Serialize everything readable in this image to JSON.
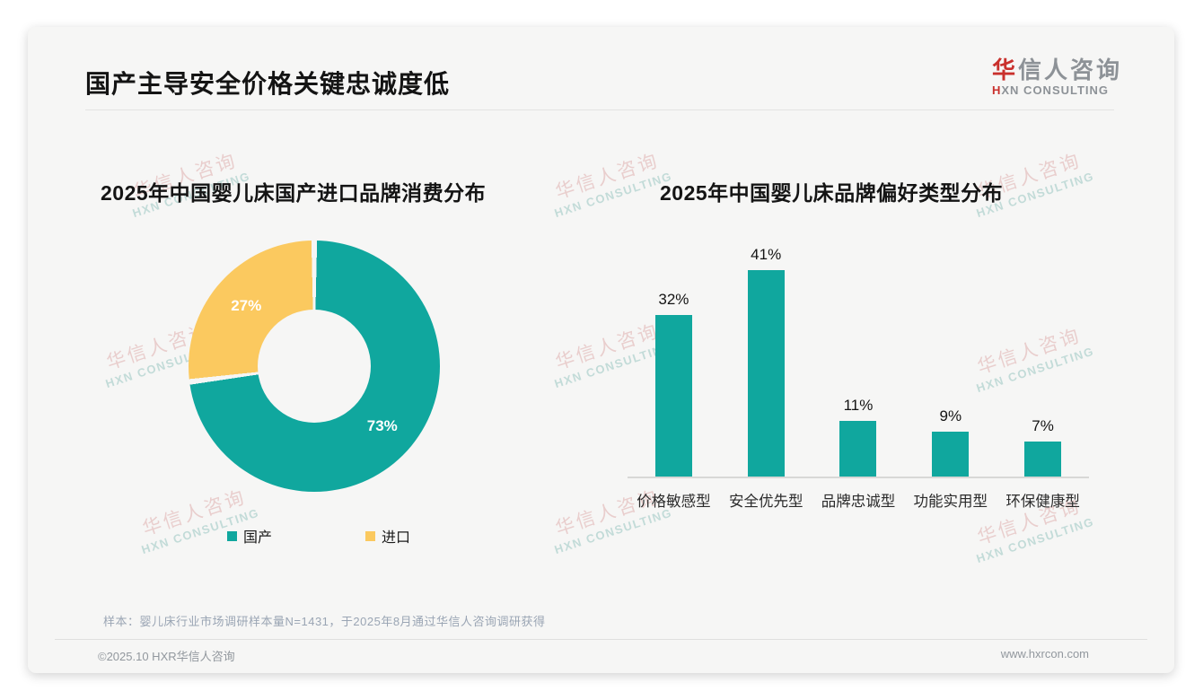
{
  "page": {
    "title": "国产主导安全价格关键忠诚度低",
    "logo": {
      "name_cn_accent": "华",
      "name_cn_rest": "信人咨询",
      "name_en_accent": "H",
      "name_en_rest": "XN CONSULTING"
    },
    "watermark": {
      "line1": "华信人咨询",
      "line2": "HXN CONSULTING"
    },
    "note": "样本：婴儿床行业市场调研样本量N=1431，于2025年8月通过华信人咨询调研获得",
    "footer_left": "©2025.10 HXR华信人咨询",
    "footer_right": "www.hxrcon.com"
  },
  "colors": {
    "teal": "#10a79e",
    "yellow": "#fbc95f",
    "card_bg": "#f6f6f5"
  },
  "chart_data": [
    {
      "type": "pie",
      "donut": true,
      "title": "2025年中国婴儿床国产进口品牌消费分布",
      "labels": [
        "国产",
        "进口"
      ],
      "values": [
        73,
        27
      ],
      "data_labels": [
        "73%",
        "27%"
      ],
      "colors": [
        "#10a79e",
        "#fbc95f"
      ],
      "start_angle_deg": 0,
      "direction": "clockwise",
      "legend_position": "bottom"
    },
    {
      "type": "bar",
      "title": "2025年中国婴儿床品牌偏好类型分布",
      "categories": [
        "价格敏感型",
        "安全优先型",
        "品牌忠诚型",
        "功能实用型",
        "环保健康型"
      ],
      "values": [
        32,
        41,
        11,
        9,
        7
      ],
      "data_labels": [
        "32%",
        "41%",
        "11%",
        "9%",
        "7%"
      ],
      "bar_color": "#10a79e",
      "ylim": [
        0,
        45
      ],
      "grid": false,
      "value_suffix": "%"
    }
  ]
}
